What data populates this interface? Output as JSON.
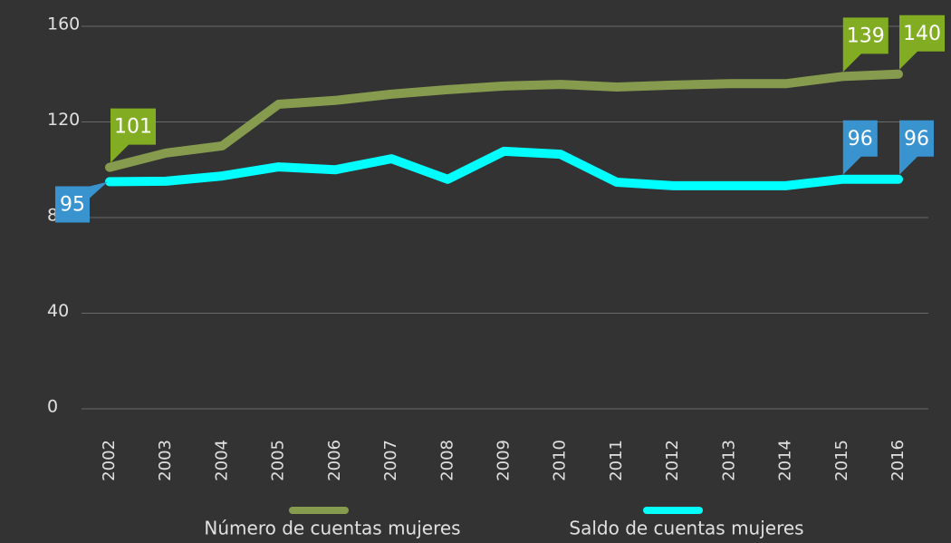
{
  "chart_data": {
    "type": "line",
    "x": [
      2002,
      2003,
      2004,
      2005,
      2006,
      2007,
      2008,
      2009,
      2010,
      2011,
      2012,
      2013,
      2014,
      2015,
      2016
    ],
    "series": [
      {
        "name": "Número de cuentas mujeres",
        "color": "#879b4f",
        "label_color": "#82ad22",
        "values": [
          101,
          107,
          110,
          127.4,
          129,
          131.6,
          133.5,
          135,
          135.7,
          134.6,
          135.4,
          136,
          136,
          139,
          140
        ],
        "value_labels": [
          "101",
          null,
          null,
          null,
          null,
          null,
          null,
          null,
          null,
          null,
          null,
          null,
          null,
          "139",
          "140"
        ]
      },
      {
        "name": "Saldo de cuentas mujeres",
        "color": "#00ffff",
        "label_color": "#3993cf",
        "values": [
          95,
          95.2,
          97.4,
          101.2,
          100,
          104.6,
          96,
          107.7,
          106.5,
          94.8,
          93.3,
          93.3,
          93.3,
          96,
          96
        ],
        "value_labels": [
          "95",
          null,
          null,
          null,
          null,
          null,
          null,
          null,
          null,
          null,
          null,
          null,
          null,
          "96",
          "96"
        ]
      }
    ],
    "ylim": [
      0,
      160
    ],
    "yticks": [
      0,
      40,
      80,
      120,
      160
    ],
    "grid": true,
    "legend": "bottom"
  }
}
